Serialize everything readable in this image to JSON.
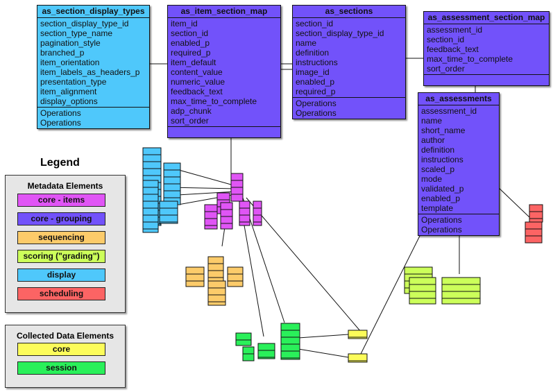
{
  "tables": [
    {
      "name": "as_section_display_types",
      "category": "display",
      "fields": [
        "section_display_type_id",
        "section_type_name",
        "pagination_style",
        "branched_p",
        "item_orientation",
        "item_labels_as_headers_p",
        "presentation_type",
        "item_alignment",
        "display_options"
      ],
      "operations": [
        "Operations",
        "Operations"
      ]
    },
    {
      "name": "as_item_section_map",
      "category": "core - grouping",
      "fields": [
        "item_id",
        "section_id",
        "enabled_p",
        "required_p",
        "item_default",
        "content_value",
        "numeric_value",
        "feedback_text",
        "max_time_to_complete",
        "adp_chunk",
        "sort_order"
      ],
      "operations": []
    },
    {
      "name": "as_sections",
      "category": "core - grouping",
      "fields": [
        "section_id",
        "section_display_type_id",
        "name",
        "definition",
        "instructions",
        "image_id",
        "enabled_p",
        "required_p"
      ],
      "operations": [
        "Operations",
        "Operations"
      ]
    },
    {
      "name": "as_assessment_section_map",
      "category": "core - grouping",
      "fields": [
        "assessment_id",
        "section_id",
        "feedback_text",
        "max_time_to_complete",
        "sort_order"
      ],
      "operations": []
    },
    {
      "name": "as_assessments",
      "category": "core - grouping",
      "fields": [
        "assessment_id",
        "name",
        "short_name",
        "author",
        "definition",
        "instructions",
        "scaled_p",
        "mode",
        "validated_p",
        "enabled_p",
        "template"
      ],
      "operations": [
        "Operations",
        "Operations"
      ]
    }
  ],
  "legend": {
    "title": "Legend",
    "metadata": {
      "title": "Metadata Elements",
      "items": [
        {
          "label": "core - items",
          "color": "#e055f5"
        },
        {
          "label": "core - grouping",
          "color": "#7252fa"
        },
        {
          "label": "sequencing",
          "color": "#fccb6a"
        },
        {
          "label": "scoring (\"grading\")",
          "color": "#ccff5a"
        },
        {
          "label": "display",
          "color": "#4fc8fb"
        },
        {
          "label": "scheduling",
          "color": "#fc6464"
        }
      ]
    },
    "collected": {
      "title": "Collected Data Elements",
      "items": [
        {
          "label": "core",
          "color": "#fcfc5a"
        },
        {
          "label": "session",
          "color": "#2af05a"
        }
      ]
    }
  }
}
